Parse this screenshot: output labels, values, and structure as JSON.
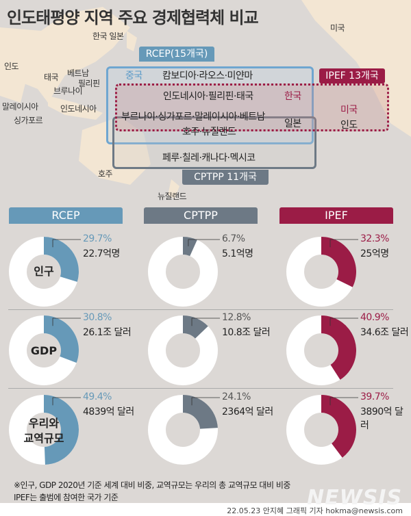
{
  "title": "인도태평양 지역 주요 경제협력체 비교",
  "map_labels": {
    "india": "인도",
    "korea_japan": "한국 일본",
    "thailand": "태국",
    "vietnam": "베트남",
    "philippines": "필리핀",
    "brunei": "브루나이",
    "malaysia": "말레이시아",
    "indonesia": "인도네시아",
    "singapore": "싱가포르",
    "australia": "호주",
    "new_zealand": "뉴질랜드",
    "usa": "미국"
  },
  "diagram": {
    "rcep_tag": "RCEP(15개국)",
    "ipef_tag": "IPEF 13개국",
    "cptpp_tag": "CPTPP 11개국",
    "china": "중국",
    "rcep_only": "캄보디아·라오스·미얀마",
    "rcep_ipef": "인도네시아·필리핀·태국",
    "korea": "한국",
    "all_three_1": "부르나이·싱가포르·말레이시아·베트남",
    "all_three_2": "호주·뉴질랜드",
    "japan": "일본",
    "ipef_us": "미국",
    "ipef_india": "인도",
    "cptpp_only": "페루·칠레·캐나다·멕시코"
  },
  "colors": {
    "rcep": "#6699b8",
    "cptpp": "#6d7985",
    "ipef": "#9b1c46",
    "background": "#dcd8d5"
  },
  "chart_data": {
    "type": "pie",
    "donut": true,
    "categories": [
      "RCEP",
      "CPTPP",
      "IPEF"
    ],
    "rows": [
      {
        "label": "인구",
        "percents": [
          29.7,
          6.7,
          32.3
        ],
        "pct_labels": [
          "29.7%",
          "6.7%",
          "32.3%"
        ],
        "values": [
          "22.7억명",
          "5.1억명",
          "25억명"
        ]
      },
      {
        "label": "GDP",
        "percents": [
          30.8,
          12.8,
          40.9
        ],
        "pct_labels": [
          "30.8%",
          "12.8%",
          "40.9%"
        ],
        "values": [
          "26.1조 달러",
          "10.8조 달러",
          "34.6조 달러"
        ]
      },
      {
        "label": "우리와 교역규모",
        "label_1": "우리와",
        "label_2": "교역규모",
        "percents": [
          49.4,
          24.1,
          39.7
        ],
        "pct_labels": [
          "49.4%",
          "24.1%",
          "39.7%"
        ],
        "values": [
          "4839억 달러",
          "2364억 달러",
          "3890억 달러"
        ]
      }
    ]
  },
  "notes": [
    "※인구, GDP 2020년 기준 세계 대비 비중, 교역규모는 우리의 총 교역규모 대비 비중",
    "IPEF는 출범에 참여한 국가 기준"
  ],
  "credit": "22.05.23 안지혜 그래픽 기자 hokma@newsis.com",
  "logo": "NEWSIS"
}
